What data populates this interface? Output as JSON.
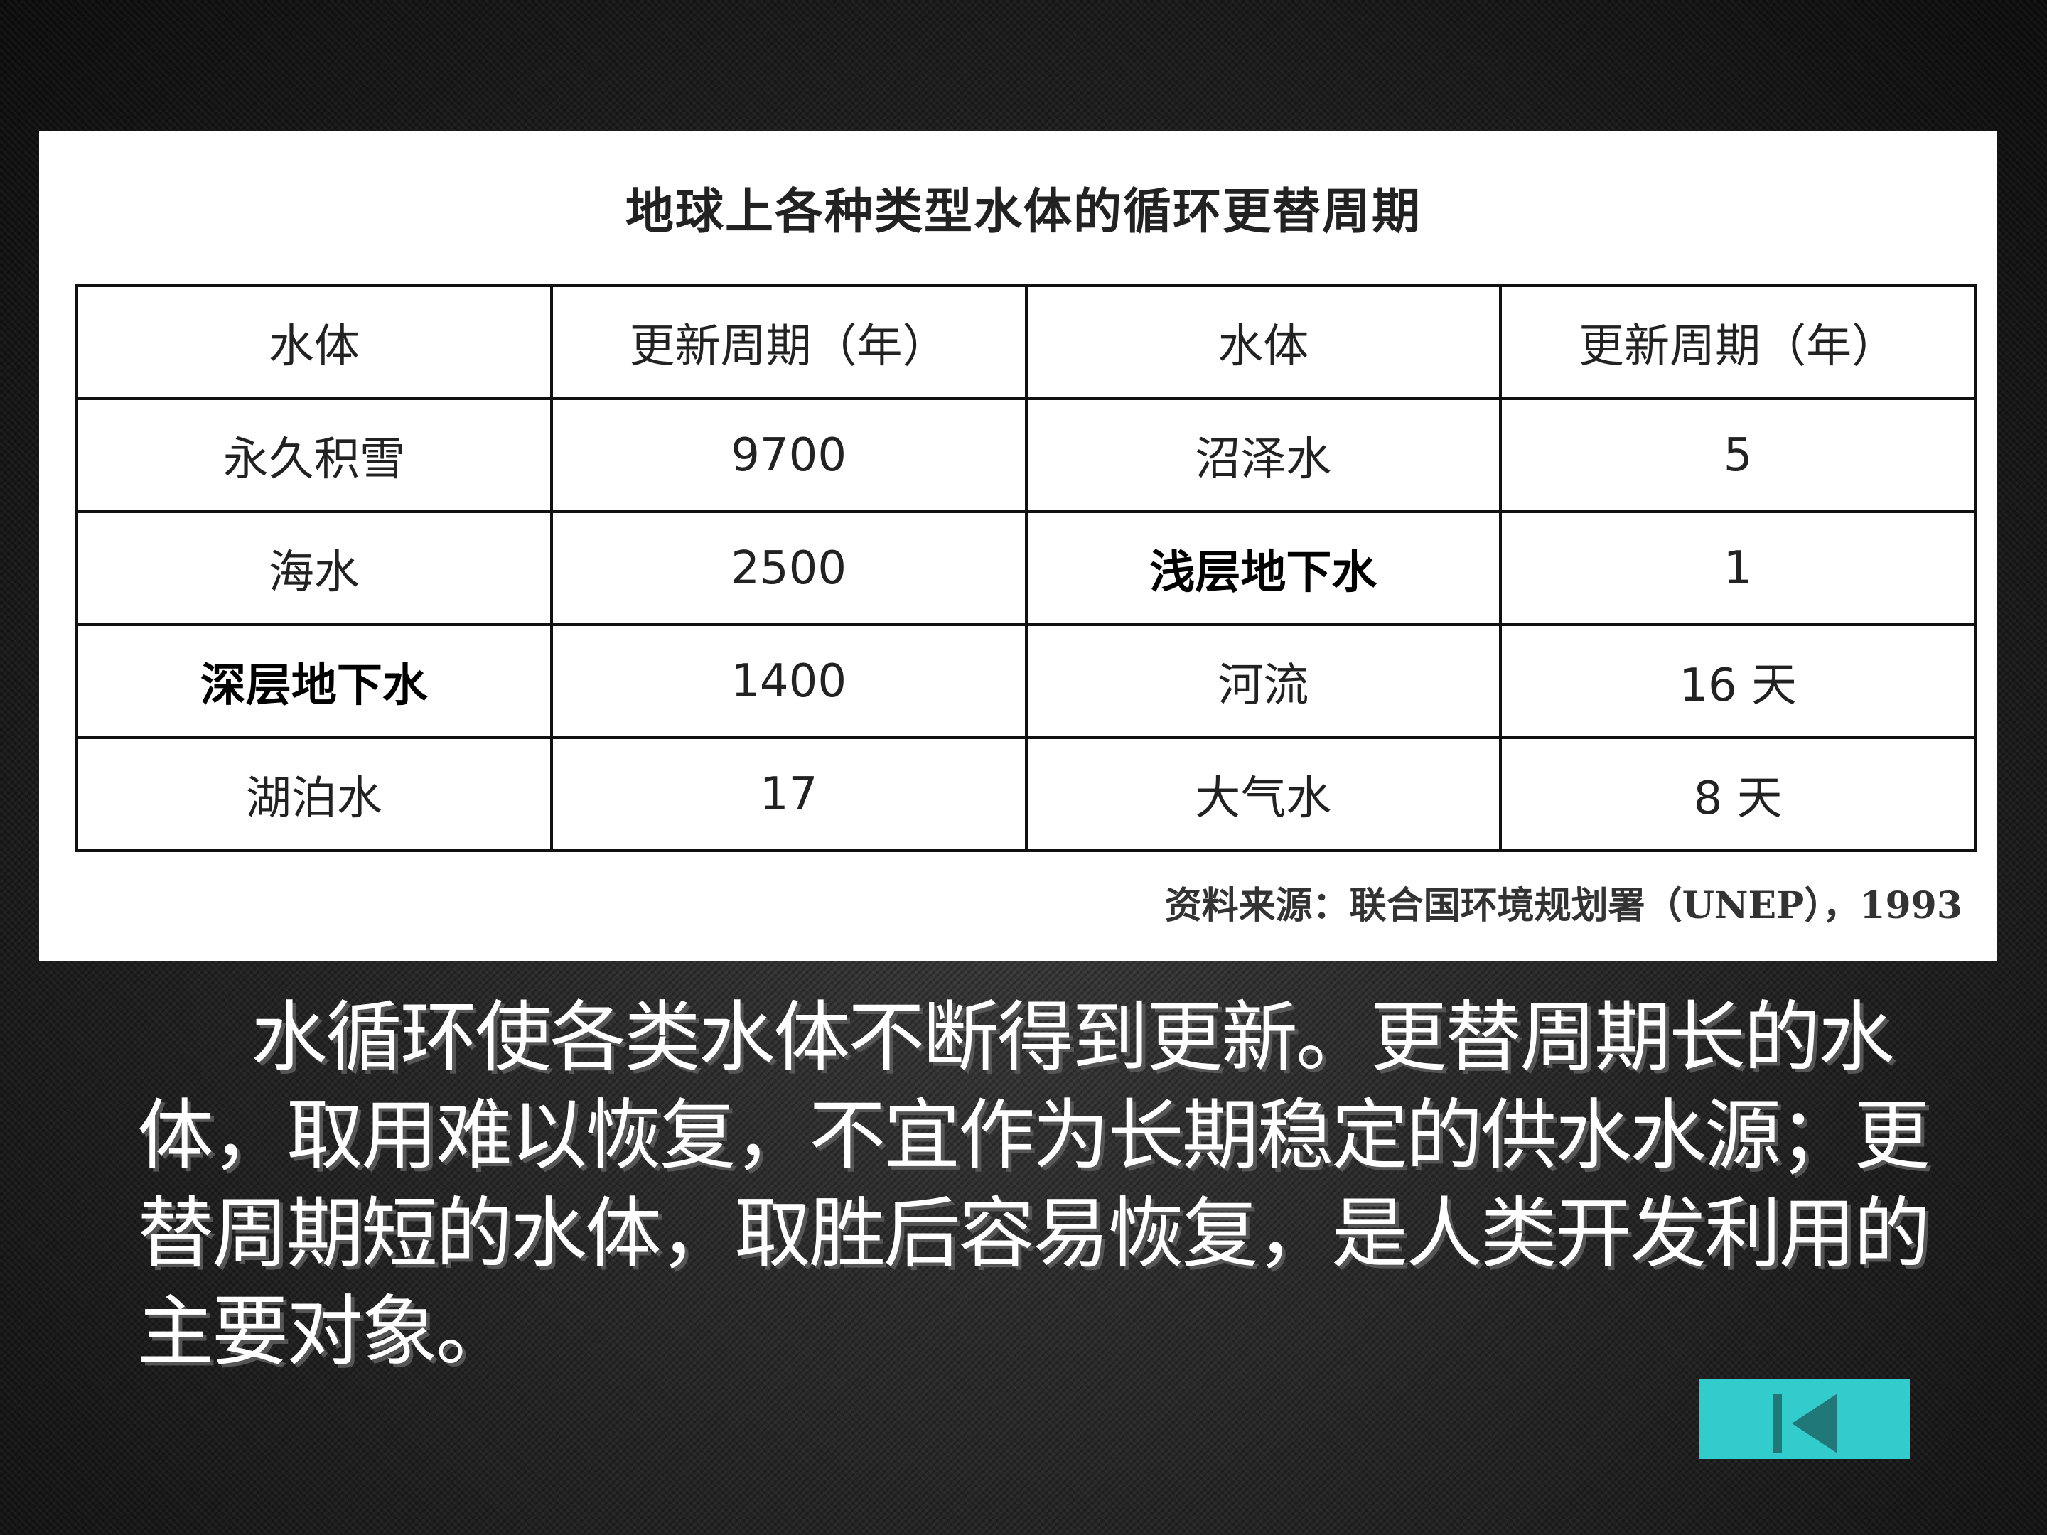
{
  "table": {
    "title": "地球上各种类型水体的循环更替周期",
    "headers": [
      "水体",
      "更新周期（年）",
      "水体",
      "更新周期（年）"
    ],
    "rows": [
      [
        "永久积雪",
        "9700",
        "沼泽水",
        "5"
      ],
      [
        "海水",
        "2500",
        "浅层地下水",
        "1"
      ],
      [
        "深层地下水",
        "1400",
        "河流",
        "16 天"
      ],
      [
        "湖泊水",
        "17",
        "大气水",
        "8 天"
      ]
    ],
    "source": "资料来源：联合国环境规划署（UNEP），1993"
  },
  "paragraph": "水循环使各类水体不断得到更新。更替周期长的水体，取用难以恢复，不宜作为长期稳定的供水水源；更替周期短的水体，取胜后容易恢复，是人类开发利用的主要对象。",
  "nav": {
    "back_icon": "skip-back-icon",
    "button_color": "#33cccc",
    "icon_color": "#207878"
  }
}
